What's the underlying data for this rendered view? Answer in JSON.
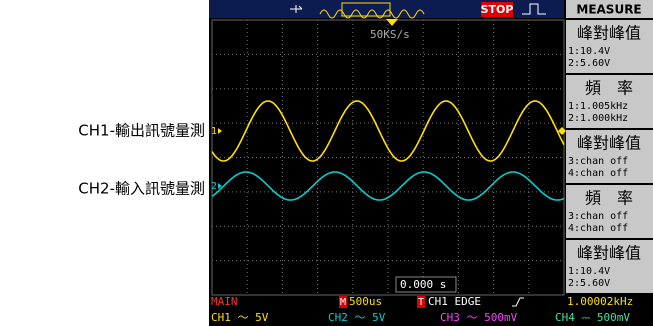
{
  "annotations": [
    "CH1-輸出訊號量測",
    "CH2-輸入訊號量測"
  ],
  "top_bar": {
    "status": "STOP",
    "menu": "MEASURE"
  },
  "screen": {
    "sample_rate": "50KS/s",
    "trigger_time": "0.000 s",
    "ch1_marker": "1",
    "ch2_marker": "2"
  },
  "measure": [
    {
      "title": "峰對峰值",
      "lines": [
        "1:10.4V",
        "2:5.60V"
      ]
    },
    {
      "title": "頻　率",
      "lines": [
        "1:1.005kHz",
        "2:1.000kHz"
      ]
    },
    {
      "title": "峰對峰值",
      "lines": [
        "3:chan off",
        "4:chan off"
      ]
    },
    {
      "title": "頻　率",
      "lines": [
        "3:chan off",
        "4:chan off"
      ]
    },
    {
      "title": "峰對峰值",
      "lines": [
        "1:10.4V",
        "2:5.60V"
      ]
    }
  ],
  "status_bar": {
    "mode": "MAIN",
    "timebase_marker": "M",
    "timebase": "500us",
    "trigger_marker": "T",
    "trigger": "CH1 EDGE",
    "trigger_freq": "1.00002kHz",
    "channels": [
      "CH1 ～ 5V",
      "CH2 ～ 5V",
      "CH3 ～ 500mV",
      "CH4 ⎓ 500mV"
    ]
  }
}
